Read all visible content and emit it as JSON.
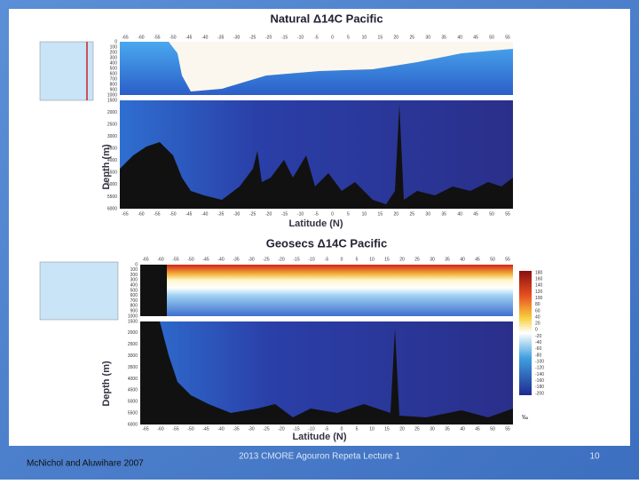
{
  "slide": {
    "panels": [
      {
        "title": "Natural Δ14C Pacific",
        "x_label": "Latitude (N)",
        "y_label": "Depth (m)",
        "lat_top": [
          "-65",
          "-60",
          "-55",
          "-50",
          "-45",
          "-40",
          "-35",
          "-30",
          "-25",
          "-20",
          "-15",
          "-10",
          "-5",
          "0",
          "5",
          "10",
          "15",
          "20",
          "25",
          "30",
          "35",
          "40",
          "45",
          "50",
          "55"
        ],
        "lat_bottom": [
          "-65",
          "-60",
          "-55",
          "-50",
          "-45",
          "-40",
          "-35",
          "-30",
          "-25",
          "-20",
          "-15",
          "-10",
          "-5",
          "0",
          "5",
          "10",
          "15",
          "20",
          "25",
          "30",
          "35",
          "40",
          "45",
          "50",
          "55"
        ],
        "depth_upper": [
          "0",
          "100",
          "200",
          "300",
          "400",
          "500",
          "600",
          "700",
          "800",
          "900",
          "1000"
        ],
        "depth_lower": [
          "1500",
          "2000",
          "2500",
          "3000",
          "3500",
          "4000",
          "4500",
          "5000",
          "5500",
          "6000"
        ]
      },
      {
        "title": "Geosecs Δ14C Pacific",
        "x_label": "Latitude (N)",
        "y_label": "Depth (m)",
        "lat_top": [
          "-65",
          "-60",
          "-55",
          "-50",
          "-45",
          "-40",
          "-35",
          "-30",
          "-25",
          "-20",
          "-15",
          "-10",
          "-5",
          "0",
          "5",
          "10",
          "15",
          "20",
          "25",
          "30",
          "35",
          "40",
          "45",
          "50",
          "55"
        ],
        "lat_bottom": [
          "-65",
          "-60",
          "-55",
          "-50",
          "-45",
          "-40",
          "-35",
          "-30",
          "-25",
          "-20",
          "-15",
          "-10",
          "-5",
          "0",
          "5",
          "10",
          "15",
          "20",
          "25",
          "30",
          "35",
          "40",
          "45",
          "50",
          "55"
        ],
        "depth_upper": [
          "0",
          "100",
          "200",
          "300",
          "400",
          "500",
          "600",
          "700",
          "800",
          "900",
          "1000"
        ],
        "depth_lower": [
          "1500",
          "2000",
          "2500",
          "3000",
          "3500",
          "4000",
          "4500",
          "5000",
          "5500",
          "6000"
        ],
        "colorbar": [
          "180",
          "160",
          "140",
          "120",
          "100",
          "80",
          "60",
          "40",
          "20",
          "0",
          "-20",
          "-40",
          "-60",
          "-80",
          "-100",
          "-120",
          "-140",
          "-160",
          "-180",
          "-200"
        ],
        "colorbar_unit": "‰"
      }
    ],
    "footer": {
      "source": "McNichol and Aluwihare 2007",
      "lecture": "2013 CMORE Agouron Repeta Lecture 1",
      "page": "10"
    }
  }
}
